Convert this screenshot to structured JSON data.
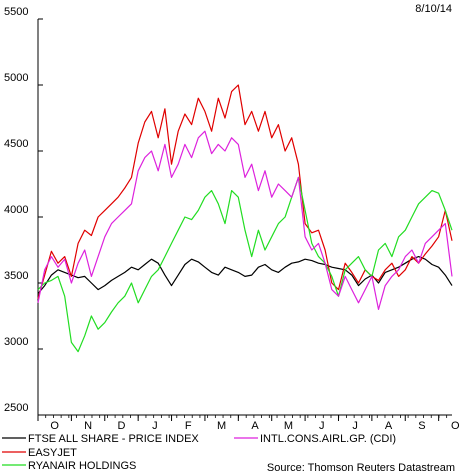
{
  "chart_data": {
    "type": "line",
    "date_stamp": "8/10/14",
    "source": "Source: Thomson Reuters Datastream",
    "ylim": [
      2500,
      5500
    ],
    "y_ticks": [
      2500,
      3000,
      3500,
      4000,
      4500,
      5000,
      5500
    ],
    "x_labels": [
      "O",
      "N",
      "D",
      "J",
      "F",
      "M",
      "A",
      "M",
      "J",
      "J",
      "A",
      "S",
      "O"
    ],
    "x_index_range": [
      0,
      12.4
    ],
    "grid": false,
    "legend_placement": "bottom",
    "series": [
      {
        "name": "FTSE ALL SHARE - PRICE INDEX",
        "color": "#000000",
        "x": [
          0,
          0.2,
          0.4,
          0.6,
          0.8,
          1.0,
          1.2,
          1.4,
          1.6,
          1.8,
          2.0,
          2.2,
          2.4,
          2.6,
          2.8,
          3.0,
          3.2,
          3.4,
          3.6,
          3.8,
          4.0,
          4.2,
          4.4,
          4.6,
          4.8,
          5.0,
          5.2,
          5.4,
          5.6,
          5.8,
          6.0,
          6.2,
          6.4,
          6.6,
          6.8,
          7.0,
          7.2,
          7.4,
          7.6,
          7.8,
          8.0,
          8.2,
          8.4,
          8.6,
          8.8,
          9.0,
          9.2,
          9.4,
          9.6,
          9.8,
          10.0,
          10.2,
          10.4,
          10.6,
          10.8,
          11.0,
          11.2,
          11.4,
          11.6,
          11.8,
          12.0,
          12.2,
          12.4
        ],
        "values": [
          3420,
          3480,
          3560,
          3600,
          3580,
          3560,
          3540,
          3550,
          3500,
          3450,
          3480,
          3520,
          3550,
          3580,
          3620,
          3600,
          3640,
          3680,
          3650,
          3560,
          3480,
          3560,
          3640,
          3680,
          3660,
          3620,
          3580,
          3560,
          3620,
          3600,
          3580,
          3550,
          3560,
          3620,
          3640,
          3600,
          3580,
          3620,
          3650,
          3660,
          3680,
          3670,
          3650,
          3640,
          3620,
          3610,
          3600,
          3560,
          3480,
          3530,
          3560,
          3500,
          3580,
          3600,
          3620,
          3650,
          3680,
          3700,
          3680,
          3640,
          3620,
          3560,
          3480
        ]
      },
      {
        "name": "EASYJET",
        "color": "#e00000",
        "x": [
          0,
          0.2,
          0.4,
          0.6,
          0.8,
          1.0,
          1.2,
          1.4,
          1.6,
          1.8,
          2.0,
          2.2,
          2.4,
          2.6,
          2.8,
          3.0,
          3.2,
          3.4,
          3.6,
          3.8,
          4.0,
          4.2,
          4.4,
          4.6,
          4.8,
          5.0,
          5.2,
          5.4,
          5.6,
          5.8,
          6.0,
          6.2,
          6.4,
          6.6,
          6.8,
          7.0,
          7.2,
          7.4,
          7.6,
          7.8,
          8.0,
          8.2,
          8.4,
          8.6,
          8.8,
          9.0,
          9.2,
          9.4,
          9.6,
          9.8,
          10.0,
          10.2,
          10.4,
          10.6,
          10.8,
          11.0,
          11.2,
          11.4,
          11.6,
          11.8,
          12.0,
          12.2,
          12.4
        ],
        "values": [
          3380,
          3560,
          3740,
          3650,
          3700,
          3550,
          3800,
          3900,
          3860,
          4000,
          4050,
          4100,
          4150,
          4220,
          4300,
          4560,
          4720,
          4800,
          4600,
          4820,
          4400,
          4650,
          4780,
          4700,
          4900,
          4800,
          4650,
          4900,
          4750,
          4950,
          5000,
          4700,
          4800,
          4650,
          4800,
          4600,
          4700,
          4500,
          4600,
          4400,
          3950,
          3880,
          3900,
          3750,
          3500,
          3450,
          3650,
          3580,
          3500,
          3600,
          3550,
          3520,
          3600,
          3650,
          3550,
          3600,
          3700,
          3650,
          3720,
          3780,
          3850,
          4050,
          3820
        ]
      },
      {
        "name": "RYANAIR HOLDINGS",
        "color": "#22dd22",
        "x": [
          0,
          0.2,
          0.4,
          0.6,
          0.8,
          1.0,
          1.2,
          1.4,
          1.6,
          1.8,
          2.0,
          2.2,
          2.4,
          2.6,
          2.8,
          3.0,
          3.2,
          3.4,
          3.6,
          3.8,
          4.0,
          4.2,
          4.4,
          4.6,
          4.8,
          5.0,
          5.2,
          5.4,
          5.6,
          5.8,
          6.0,
          6.2,
          6.4,
          6.6,
          6.8,
          7.0,
          7.2,
          7.4,
          7.6,
          7.8,
          8.0,
          8.2,
          8.4,
          8.6,
          8.8,
          9.0,
          9.2,
          9.4,
          9.6,
          9.8,
          10.0,
          10.2,
          10.4,
          10.6,
          10.8,
          11.0,
          11.2,
          11.4,
          11.6,
          11.8,
          12.0,
          12.2,
          12.4
        ],
        "values": [
          3450,
          3500,
          3520,
          3550,
          3400,
          3050,
          2980,
          3100,
          3250,
          3150,
          3200,
          3280,
          3350,
          3400,
          3500,
          3350,
          3450,
          3550,
          3600,
          3700,
          3800,
          3900,
          4000,
          3980,
          4050,
          4150,
          4200,
          4100,
          3950,
          4200,
          4150,
          3900,
          3700,
          3900,
          3750,
          3850,
          3950,
          4000,
          4150,
          4300,
          4050,
          3800,
          3700,
          3650,
          3550,
          3400,
          3600,
          3650,
          3700,
          3600,
          3550,
          3750,
          3800,
          3700,
          3850,
          3900,
          4000,
          4100,
          4150,
          4200,
          4180,
          4050,
          3900
        ]
      },
      {
        "name": "INTL.CONS.AIRL.GP. (CDI)",
        "color": "#dd22dd",
        "x": [
          0,
          0.2,
          0.4,
          0.6,
          0.8,
          1.0,
          1.2,
          1.4,
          1.6,
          1.8,
          2.0,
          2.2,
          2.4,
          2.6,
          2.8,
          3.0,
          3.2,
          3.4,
          3.6,
          3.8,
          4.0,
          4.2,
          4.4,
          4.6,
          4.8,
          5.0,
          5.2,
          5.4,
          5.6,
          5.8,
          6.0,
          6.2,
          6.4,
          6.6,
          6.8,
          7.0,
          7.2,
          7.4,
          7.6,
          7.8,
          8.0,
          8.2,
          8.4,
          8.6,
          8.8,
          9.0,
          9.2,
          9.4,
          9.6,
          9.8,
          10.0,
          10.2,
          10.4,
          10.6,
          10.8,
          11.0,
          11.2,
          11.4,
          11.6,
          11.8,
          12.0,
          12.2,
          12.4
        ],
        "values": [
          3350,
          3600,
          3700,
          3620,
          3680,
          3500,
          3650,
          3750,
          3550,
          3700,
          3850,
          3950,
          4000,
          4050,
          4100,
          4350,
          4450,
          4500,
          4350,
          4550,
          4300,
          4400,
          4550,
          4450,
          4600,
          4650,
          4480,
          4550,
          4500,
          4600,
          4550,
          4300,
          4400,
          4200,
          4350,
          4150,
          4250,
          4200,
          4150,
          4300,
          3850,
          3750,
          3800,
          3650,
          3450,
          3400,
          3550,
          3450,
          3350,
          3450,
          3550,
          3300,
          3480,
          3550,
          3600,
          3700,
          3750,
          3650,
          3800,
          3850,
          3900,
          3950,
          3550
        ]
      }
    ]
  }
}
